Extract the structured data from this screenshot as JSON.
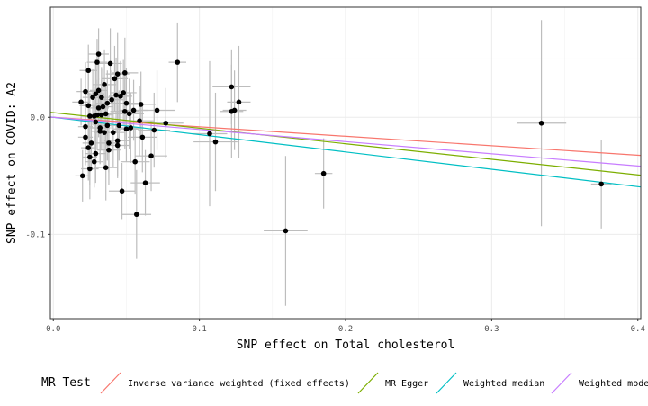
{
  "chart_data": {
    "type": "scatter",
    "title": "",
    "xlabel": "SNP effect on Total cholesterol",
    "ylabel": "SNP effect on COVID: A2",
    "xlim": [
      -0.002,
      0.402
    ],
    "ylim": [
      -0.172,
      0.094
    ],
    "xticks": [
      0.0,
      0.1,
      0.2,
      0.3,
      0.4
    ],
    "xtick_labels": [
      "0.0",
      "0.1",
      "0.2",
      "0.3",
      "0.4"
    ],
    "yticks": [
      -0.1,
      0.0
    ],
    "ytick_labels": [
      "-0.1",
      "0.0"
    ],
    "grid": true,
    "theme": "bw",
    "point_color": "#000000",
    "errorbar_color": "#bdbdbd",
    "points": [
      {
        "x": 0.019,
        "y": 0.013,
        "xe": 0.006,
        "ye": 0.02
      },
      {
        "x": 0.02,
        "y": -0.05,
        "xe": 0.005,
        "ye": 0.022
      },
      {
        "x": 0.022,
        "y": 0.022,
        "xe": 0.006,
        "ye": 0.025
      },
      {
        "x": 0.022,
        "y": -0.008,
        "xe": 0.005,
        "ye": 0.03
      },
      {
        "x": 0.022,
        "y": -0.017,
        "xe": 0.005,
        "ye": 0.024
      },
      {
        "x": 0.024,
        "y": 0.04,
        "xe": 0.006,
        "ye": 0.022
      },
      {
        "x": 0.024,
        "y": 0.01,
        "xe": 0.006,
        "ye": 0.03
      },
      {
        "x": 0.024,
        "y": -0.026,
        "xe": 0.005,
        "ye": 0.028
      },
      {
        "x": 0.025,
        "y": -0.044,
        "xe": 0.006,
        "ye": 0.026
      },
      {
        "x": 0.025,
        "y": -0.034,
        "xe": 0.005,
        "ye": 0.024
      },
      {
        "x": 0.025,
        "y": 0.001,
        "xe": 0.006,
        "ye": 0.02
      },
      {
        "x": 0.026,
        "y": -0.022,
        "xe": 0.006,
        "ye": 0.023
      },
      {
        "x": 0.027,
        "y": 0.017,
        "xe": 0.007,
        "ye": 0.024
      },
      {
        "x": 0.028,
        "y": 0.001,
        "xe": 0.006,
        "ye": 0.025
      },
      {
        "x": 0.028,
        "y": -0.038,
        "xe": 0.006,
        "ye": 0.022
      },
      {
        "x": 0.029,
        "y": 0.02,
        "xe": 0.006,
        "ye": 0.03
      },
      {
        "x": 0.029,
        "y": -0.004,
        "xe": 0.006,
        "ye": 0.024
      },
      {
        "x": 0.029,
        "y": -0.031,
        "xe": 0.007,
        "ye": 0.025
      },
      {
        "x": 0.03,
        "y": 0.047,
        "xe": 0.007,
        "ye": 0.02
      },
      {
        "x": 0.03,
        "y": 0.002,
        "xe": 0.006,
        "ye": 0.03
      },
      {
        "x": 0.031,
        "y": 0.054,
        "xe": 0.007,
        "ye": 0.022
      },
      {
        "x": 0.031,
        "y": 0.023,
        "xe": 0.006,
        "ye": 0.03
      },
      {
        "x": 0.031,
        "y": 0.008,
        "xe": 0.007,
        "ye": 0.025
      },
      {
        "x": 0.032,
        "y": -0.012,
        "xe": 0.006,
        "ye": 0.028
      },
      {
        "x": 0.032,
        "y": -0.009,
        "xe": 0.007,
        "ye": 0.03
      },
      {
        "x": 0.033,
        "y": 0.017,
        "xe": 0.007,
        "ye": 0.026
      },
      {
        "x": 0.033,
        "y": 0.002,
        "xe": 0.008,
        "ye": 0.03
      },
      {
        "x": 0.034,
        "y": 0.009,
        "xe": 0.007,
        "ye": 0.032
      },
      {
        "x": 0.035,
        "y": 0.028,
        "xe": 0.008,
        "ye": 0.03
      },
      {
        "x": 0.035,
        "y": -0.013,
        "xe": 0.007,
        "ye": 0.03
      },
      {
        "x": 0.036,
        "y": 0.003,
        "xe": 0.008,
        "ye": 0.025
      },
      {
        "x": 0.036,
        "y": -0.043,
        "xe": 0.008,
        "ye": 0.028
      },
      {
        "x": 0.037,
        "y": 0.012,
        "xe": 0.008,
        "ye": 0.028
      },
      {
        "x": 0.037,
        "y": -0.007,
        "xe": 0.007,
        "ye": 0.03
      },
      {
        "x": 0.038,
        "y": -0.028,
        "xe": 0.008,
        "ye": 0.03
      },
      {
        "x": 0.038,
        "y": -0.022,
        "xe": 0.007,
        "ye": 0.025
      },
      {
        "x": 0.039,
        "y": 0.046,
        "xe": 0.008,
        "ye": 0.03
      },
      {
        "x": 0.04,
        "y": 0.015,
        "xe": 0.008,
        "ye": 0.025
      },
      {
        "x": 0.041,
        "y": -0.013,
        "xe": 0.008,
        "ye": 0.03
      },
      {
        "x": 0.042,
        "y": 0.033,
        "xe": 0.009,
        "ye": 0.028
      },
      {
        "x": 0.043,
        "y": 0.019,
        "xe": 0.008,
        "ye": 0.032
      },
      {
        "x": 0.044,
        "y": 0.037,
        "xe": 0.008,
        "ye": 0.035
      },
      {
        "x": 0.044,
        "y": -0.02,
        "xe": 0.009,
        "ye": 0.03
      },
      {
        "x": 0.044,
        "y": -0.024,
        "xe": 0.008,
        "ye": 0.028
      },
      {
        "x": 0.045,
        "y": -0.007,
        "xe": 0.009,
        "ye": 0.03
      },
      {
        "x": 0.046,
        "y": 0.018,
        "xe": 0.008,
        "ye": 0.03
      },
      {
        "x": 0.047,
        "y": -0.063,
        "xe": 0.009,
        "ye": 0.024
      },
      {
        "x": 0.048,
        "y": 0.021,
        "xe": 0.009,
        "ye": 0.028
      },
      {
        "x": 0.049,
        "y": 0.038,
        "xe": 0.009,
        "ye": 0.03
      },
      {
        "x": 0.049,
        "y": 0.005,
        "xe": 0.01,
        "ye": 0.032
      },
      {
        "x": 0.05,
        "y": 0.012,
        "xe": 0.009,
        "ye": 0.03
      },
      {
        "x": 0.05,
        "y": -0.01,
        "xe": 0.009,
        "ye": 0.028
      },
      {
        "x": 0.052,
        "y": 0.003,
        "xe": 0.01,
        "ye": 0.03
      },
      {
        "x": 0.053,
        "y": -0.009,
        "xe": 0.009,
        "ye": 0.03
      },
      {
        "x": 0.055,
        "y": 0.006,
        "xe": 0.01,
        "ye": 0.026
      },
      {
        "x": 0.056,
        "y": -0.038,
        "xe": 0.01,
        "ye": 0.028
      },
      {
        "x": 0.057,
        "y": -0.083,
        "xe": 0.01,
        "ye": 0.038
      },
      {
        "x": 0.059,
        "y": -0.003,
        "xe": 0.01,
        "ye": 0.03
      },
      {
        "x": 0.06,
        "y": 0.011,
        "xe": 0.01,
        "ye": 0.028
      },
      {
        "x": 0.061,
        "y": -0.017,
        "xe": 0.01,
        "ye": 0.03
      },
      {
        "x": 0.063,
        "y": -0.056,
        "xe": 0.01,
        "ye": 0.028
      },
      {
        "x": 0.067,
        "y": -0.033,
        "xe": 0.011,
        "ye": 0.03
      },
      {
        "x": 0.069,
        "y": -0.011,
        "xe": 0.011,
        "ye": 0.032
      },
      {
        "x": 0.071,
        "y": 0.006,
        "xe": 0.012,
        "ye": 0.034
      },
      {
        "x": 0.077,
        "y": -0.005,
        "xe": 0.012,
        "ye": 0.03
      },
      {
        "x": 0.085,
        "y": 0.047,
        "xe": 0.006,
        "ye": 0.034
      },
      {
        "x": 0.107,
        "y": -0.014,
        "xe": 0.012,
        "ye": 0.062
      },
      {
        "x": 0.111,
        "y": -0.021,
        "xe": 0.015,
        "ye": 0.042
      },
      {
        "x": 0.122,
        "y": 0.026,
        "xe": 0.013,
        "ye": 0.032
      },
      {
        "x": 0.122,
        "y": 0.005,
        "xe": 0.008,
        "ye": 0.04
      },
      {
        "x": 0.124,
        "y": 0.006,
        "xe": 0.008,
        "ye": 0.034
      },
      {
        "x": 0.127,
        "y": 0.013,
        "xe": 0.008,
        "ye": 0.048
      },
      {
        "x": 0.159,
        "y": -0.097,
        "xe": 0.015,
        "ye": 0.064
      },
      {
        "x": 0.185,
        "y": -0.048,
        "xe": 0.006,
        "ye": 0.03
      },
      {
        "x": 0.334,
        "y": -0.005,
        "xe": 0.017,
        "ye": 0.088
      },
      {
        "x": 0.375,
        "y": -0.057,
        "xe": 0.007,
        "ye": 0.038
      }
    ],
    "series": [
      {
        "name": "Inverse variance weighted (fixed effects)",
        "color": "#f8766d",
        "intercept": 0.0,
        "slope": -0.081
      },
      {
        "name": "MR Egger",
        "color": "#7cae00",
        "intercept": 0.004,
        "slope": -0.133
      },
      {
        "name": "Weighted median",
        "color": "#00bfc4",
        "intercept": 0.0,
        "slope": -0.148
      },
      {
        "name": "Weighted mode",
        "color": "#c77cff",
        "intercept": 0.0,
        "slope": -0.104
      }
    ],
    "legend": {
      "title": "MR Test",
      "position": "bottom"
    }
  }
}
